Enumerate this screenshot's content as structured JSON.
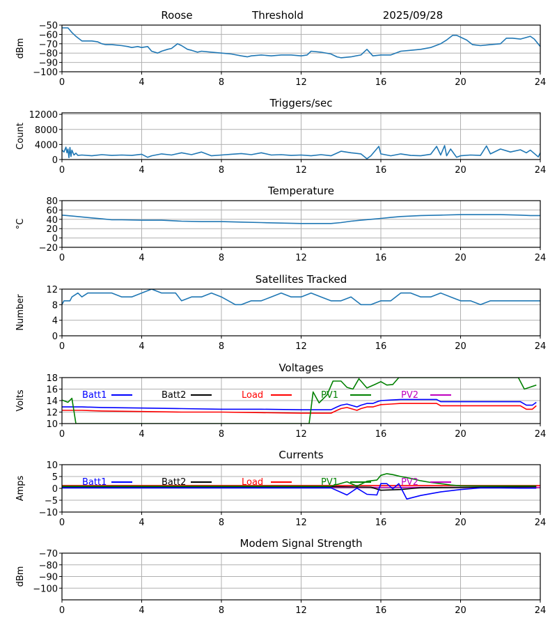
{
  "header": {
    "station": "Roose",
    "threshold_label": "Threshold",
    "date": "2025/09/28"
  },
  "colors": {
    "series_default": "#1f77b4",
    "Batt1": "#0000ff",
    "Batt2": "#000000",
    "Load": "#ff0000",
    "PV1": "#008000",
    "PV2": "#bf00bf",
    "grid": "#b0b0b0"
  },
  "chart_data": [
    {
      "type": "line",
      "id": "threshold",
      "title": "",
      "ylabel": "dBm",
      "xlim": [
        0,
        24
      ],
      "ylim": [
        -100,
        -50
      ],
      "xticks": [
        0,
        4,
        8,
        12,
        16,
        20,
        24
      ],
      "yticks": [
        -100,
        -90,
        -80,
        -70,
        -60,
        -50
      ],
      "ytick_labels": [
        "−100",
        "−90",
        "−80",
        "−70",
        "−60",
        "−50"
      ],
      "grid": true,
      "series": [
        {
          "name": "Threshold",
          "color_key": "series_default",
          "x": [
            0,
            0.3,
            0.5,
            0.7,
            1.0,
            1.3,
            1.5,
            1.8,
            2.0,
            2.2,
            2.5,
            3.0,
            3.3,
            3.5,
            3.8,
            4.0,
            4.3,
            4.5,
            4.8,
            5.0,
            5.3,
            5.5,
            5.8,
            6.0,
            6.3,
            6.5,
            6.8,
            7.0,
            7.5,
            8.0,
            8.5,
            9.0,
            9.3,
            9.5,
            10.0,
            10.5,
            11.0,
            11.5,
            12.0,
            12.3,
            12.5,
            13.0,
            13.5,
            13.8,
            14.0,
            14.5,
            15.0,
            15.3,
            15.6,
            16.0,
            16.5,
            17.0,
            17.5,
            18.0,
            18.5,
            19.0,
            19.3,
            19.6,
            19.8,
            20.0,
            20.3,
            20.6,
            21.0,
            21.5,
            22.0,
            22.3,
            22.6,
            23.0,
            23.5,
            23.7,
            24.0
          ],
          "y": [
            -53,
            -53,
            -58,
            -62,
            -67,
            -67,
            -67,
            -68,
            -70,
            -71,
            -71,
            -72,
            -73,
            -74,
            -73,
            -74,
            -73,
            -78,
            -80,
            -78,
            -76,
            -75,
            -70,
            -72,
            -76,
            -77,
            -79,
            -78,
            -79,
            -80,
            -81,
            -83,
            -84,
            -83,
            -82,
            -83,
            -82,
            -82,
            -83,
            -82,
            -78,
            -79,
            -81,
            -84,
            -85,
            -84,
            -82,
            -76,
            -83,
            -82,
            -82,
            -78,
            -77,
            -76,
            -74,
            -70,
            -66,
            -61,
            -61,
            -63,
            -66,
            -71,
            -72,
            -71,
            -70,
            -64,
            -64,
            -65,
            -62,
            -65,
            -73
          ]
        }
      ]
    },
    {
      "type": "line",
      "id": "triggers",
      "title": "Triggers/sec",
      "ylabel": "Count",
      "xlim": [
        0,
        24
      ],
      "ylim": [
        0,
        12400
      ],
      "xticks": [
        0,
        4,
        8,
        12,
        16,
        20,
        24
      ],
      "yticks": [
        0,
        4000,
        8000,
        12000
      ],
      "ytick_labels": [
        "0",
        "4000",
        "8000",
        "12000"
      ],
      "grid": true,
      "series": [
        {
          "name": "Triggers",
          "color_key": "series_default",
          "x": [
            0,
            0.1,
            0.2,
            0.25,
            0.3,
            0.35,
            0.4,
            0.45,
            0.5,
            0.6,
            0.7,
            0.8,
            1.0,
            1.5,
            2.0,
            2.5,
            3.0,
            3.5,
            4.0,
            4.3,
            4.5,
            5.0,
            5.5,
            6.0,
            6.5,
            7.0,
            7.5,
            8.0,
            8.5,
            9.0,
            9.5,
            10.0,
            10.5,
            11.0,
            11.5,
            12.0,
            12.5,
            13.0,
            13.5,
            14.0,
            14.5,
            15.0,
            15.3,
            15.5,
            15.9,
            16.0,
            16.5,
            17.0,
            17.5,
            18.0,
            18.5,
            18.8,
            19.0,
            19.2,
            19.3,
            19.5,
            19.8,
            20.0,
            20.5,
            21.0,
            21.3,
            21.5,
            22.0,
            22.5,
            23.0,
            23.3,
            23.5,
            23.9,
            24.0
          ],
          "y": [
            2500,
            2000,
            3300,
            1800,
            2800,
            500,
            3200,
            800,
            2500,
            1200,
            1700,
            1100,
            1200,
            1000,
            1300,
            1100,
            1200,
            1100,
            1400,
            600,
            1000,
            1500,
            1200,
            1800,
            1300,
            2000,
            1000,
            1200,
            1400,
            1600,
            1300,
            1800,
            1200,
            1300,
            1100,
            1200,
            1000,
            1300,
            1000,
            2200,
            1800,
            1500,
            200,
            1000,
            3500,
            1500,
            1000,
            1500,
            1100,
            1000,
            1400,
            3500,
            1200,
            3700,
            1000,
            2800,
            600,
            1000,
            1200,
            1100,
            3600,
            1500,
            2800,
            2000,
            2600,
            1800,
            2500,
            700,
            1800
          ]
        }
      ]
    },
    {
      "type": "line",
      "id": "temperature",
      "title": "Temperature",
      "ylabel": "°C",
      "xlim": [
        0,
        24
      ],
      "ylim": [
        -20,
        80
      ],
      "xticks": [
        0,
        4,
        8,
        12,
        16,
        20,
        24
      ],
      "yticks": [
        -20,
        0,
        20,
        40,
        60,
        80
      ],
      "ytick_labels": [
        "−20",
        "0",
        "20",
        "40",
        "60",
        "80"
      ],
      "grid": true,
      "series": [
        {
          "name": "Temperature",
          "color_key": "series_default",
          "x": [
            0,
            0.5,
            1.0,
            1.5,
            2.0,
            2.5,
            3.0,
            4.0,
            5.0,
            6.0,
            7.0,
            8.0,
            9.0,
            10.0,
            11.0,
            12.0,
            13.0,
            13.5,
            14.0,
            14.5,
            15.0,
            15.5,
            16.0,
            16.5,
            17.0,
            18.0,
            19.0,
            20.0,
            21.0,
            22.0,
            23.0,
            23.5,
            24.0
          ],
          "y": [
            49,
            47,
            45,
            43,
            41,
            39,
            39,
            38,
            38,
            36,
            35,
            35,
            34,
            33,
            32,
            31,
            31,
            31,
            33,
            36,
            38,
            40,
            42,
            44,
            46,
            48,
            49,
            50,
            50,
            50,
            49,
            48,
            48
          ]
        }
      ]
    },
    {
      "type": "line",
      "id": "satellites",
      "title": "Satellites Tracked",
      "ylabel": "Number",
      "xlim": [
        0,
        24
      ],
      "ylim": [
        0,
        12
      ],
      "xticks": [
        0,
        4,
        8,
        12,
        16,
        20,
        24
      ],
      "yticks": [
        0,
        4,
        8,
        12
      ],
      "ytick_labels": [
        "0",
        "4",
        "8",
        "12"
      ],
      "grid": true,
      "series": [
        {
          "name": "Satellites",
          "color_key": "series_default",
          "x": [
            0,
            0.1,
            0.4,
            0.5,
            0.8,
            1.0,
            1.3,
            1.5,
            2.0,
            2.5,
            3.0,
            3.5,
            4.0,
            4.5,
            5.0,
            5.7,
            6.0,
            6.5,
            7.0,
            7.5,
            8.0,
            8.7,
            9.0,
            9.5,
            10.0,
            10.5,
            11.0,
            11.5,
            12.0,
            12.5,
            13.0,
            13.5,
            14.0,
            14.5,
            15.0,
            15.5,
            16.0,
            16.5,
            17.0,
            17.5,
            18.0,
            18.5,
            19.0,
            19.5,
            20.0,
            20.5,
            21.0,
            21.5,
            22.0,
            22.5,
            23.0,
            23.5,
            24.0
          ],
          "y": [
            8,
            9,
            9,
            10,
            11,
            10,
            11,
            11,
            11,
            11,
            10,
            10,
            11,
            12,
            11,
            11,
            9,
            10,
            10,
            11,
            10,
            8,
            8,
            9,
            9,
            10,
            11,
            10,
            10,
            11,
            10,
            9,
            9,
            10,
            8,
            8,
            9,
            9,
            11,
            11,
            10,
            10,
            11,
            10,
            9,
            9,
            8,
            9,
            9,
            9,
            9,
            9,
            9
          ]
        }
      ]
    },
    {
      "type": "line",
      "id": "voltages",
      "title": "Voltages",
      "ylabel": "Volts",
      "xlim": [
        0,
        24
      ],
      "ylim": [
        10,
        18
      ],
      "xticks": [
        0,
        4,
        8,
        12,
        16,
        20,
        24
      ],
      "yticks": [
        10,
        12,
        14,
        16,
        18
      ],
      "ytick_labels": [
        "10",
        "12",
        "14",
        "16",
        "18"
      ],
      "grid": true,
      "legend": [
        "Batt1",
        "Batt2",
        "Load",
        "PV1",
        "PV2"
      ],
      "legend_placement": "top",
      "series": [
        {
          "name": "Batt1",
          "color_key": "Batt1",
          "x": [
            0,
            1,
            2,
            4,
            6,
            8,
            10,
            12,
            13.5,
            13.8,
            14.0,
            14.3,
            14.8,
            15.0,
            15.3,
            15.6,
            15.9,
            16.0,
            16.5,
            17.0,
            18.0,
            18.8,
            19.0,
            20.0,
            22.0,
            23.0,
            23.3,
            23.6,
            23.8
          ],
          "y": [
            12.9,
            12.9,
            12.8,
            12.7,
            12.6,
            12.5,
            12.5,
            12.4,
            12.4,
            12.9,
            13.2,
            13.4,
            12.9,
            13.2,
            13.5,
            13.5,
            13.9,
            14.0,
            14.1,
            14.2,
            14.2,
            14.2,
            13.8,
            13.8,
            13.8,
            13.8,
            13.2,
            13.2,
            13.7
          ]
        },
        {
          "name": "Load",
          "color_key": "Load",
          "x": [
            0,
            1,
            2,
            4,
            6,
            8,
            10,
            12,
            13.5,
            13.8,
            14.0,
            14.3,
            14.8,
            15.0,
            15.3,
            15.6,
            15.9,
            16.0,
            16.5,
            17.0,
            18.0,
            18.8,
            19.0,
            20.0,
            22.0,
            23.0,
            23.3,
            23.6,
            23.8
          ],
          "y": [
            12.3,
            12.3,
            12.2,
            12.1,
            12.0,
            12.0,
            11.9,
            11.8,
            11.8,
            12.3,
            12.6,
            12.8,
            12.3,
            12.6,
            12.9,
            12.9,
            13.2,
            13.3,
            13.4,
            13.5,
            13.5,
            13.5,
            13.1,
            13.1,
            13.1,
            13.1,
            12.5,
            12.5,
            13.1
          ]
        },
        {
          "name": "PV1",
          "color_key": "PV1",
          "x": [
            0,
            0.3,
            0.5,
            0.7,
            12.4,
            12.6,
            12.9,
            13.3,
            13.6,
            14.0,
            14.3,
            14.6,
            14.9,
            15.3,
            15.7,
            16.0,
            16.3,
            16.6,
            16.9,
            22.6,
            22.9,
            23.2,
            23.8
          ],
          "y": [
            14.1,
            13.7,
            14.4,
            10.0,
            10.0,
            15.5,
            13.6,
            15.0,
            17.4,
            17.4,
            16.3,
            16.0,
            17.8,
            16.2,
            16.8,
            17.3,
            16.7,
            16.8,
            18.0,
            18.0,
            18.0,
            16.0,
            16.7
          ]
        }
      ]
    },
    {
      "type": "line",
      "id": "currents",
      "title": "Currents",
      "ylabel": "Amps",
      "xlim": [
        0,
        24
      ],
      "ylim": [
        -10,
        10
      ],
      "xticks": [
        0,
        4,
        8,
        12,
        16,
        20,
        24
      ],
      "yticks": [
        -10,
        -5,
        0,
        5,
        10
      ],
      "ytick_labels": [
        "−10",
        "−5",
        "0",
        "5",
        "10"
      ],
      "grid": true,
      "legend": [
        "Batt1",
        "Batt2",
        "Load",
        "PV1",
        "PV2"
      ],
      "legend_placement": "top",
      "series": [
        {
          "name": "PV2",
          "color_key": "PV2",
          "x": [
            0,
            24
          ],
          "y": [
            0.4,
            0.4
          ]
        },
        {
          "name": "Batt2",
          "color_key": "Batt2",
          "x": [
            0,
            13.5,
            15.5,
            16.0,
            17.0,
            18.0,
            23.8
          ],
          "y": [
            0.7,
            0.7,
            0.5,
            -0.8,
            -0.5,
            0.3,
            0.7
          ]
        },
        {
          "name": "Load",
          "color_key": "Load",
          "x": [
            0,
            24
          ],
          "y": [
            1.2,
            1.2
          ]
        },
        {
          "name": "Batt1",
          "color_key": "Batt1",
          "x": [
            0,
            13.5,
            14.3,
            14.8,
            15.3,
            15.8,
            16.0,
            16.3,
            16.6,
            16.9,
            17.3,
            18.0,
            19.0,
            20.0,
            21.0,
            22.0,
            23.0,
            23.8
          ],
          "y": [
            0.2,
            0.2,
            -2.8,
            0.1,
            -2.5,
            -2.8,
            2.0,
            2.0,
            -0.2,
            2.0,
            -4.5,
            -3.0,
            -1.5,
            -0.5,
            0.2,
            0.2,
            0.1,
            0.1
          ]
        },
        {
          "name": "PV1",
          "color_key": "PV1",
          "x": [
            0,
            13.5,
            14.3,
            14.8,
            15.3,
            15.8,
            16.0,
            16.3,
            16.6,
            17.0,
            17.5,
            18.0,
            18.5,
            19.0,
            19.5,
            20.0,
            21.0,
            22.0,
            23.8
          ],
          "y": [
            0.9,
            0.9,
            2.8,
            0.9,
            3.0,
            3.5,
            5.5,
            6.2,
            5.8,
            5.0,
            4.2,
            3.2,
            2.5,
            2.0,
            1.4,
            1.1,
            1.0,
            1.0,
            1.0
          ]
        }
      ]
    },
    {
      "type": "line",
      "id": "modem",
      "title": "Modem Signal Strength",
      "ylabel": "dBm",
      "xlim": [
        0,
        24
      ],
      "ylim": [
        -110,
        -70
      ],
      "xticks": [
        0,
        4,
        8,
        12,
        16,
        20,
        24
      ],
      "yticks": [
        -100,
        -90,
        -80,
        -70
      ],
      "ytick_labels": [
        "−100",
        "−90",
        "−80",
        "−70"
      ],
      "grid": true,
      "series": []
    }
  ]
}
